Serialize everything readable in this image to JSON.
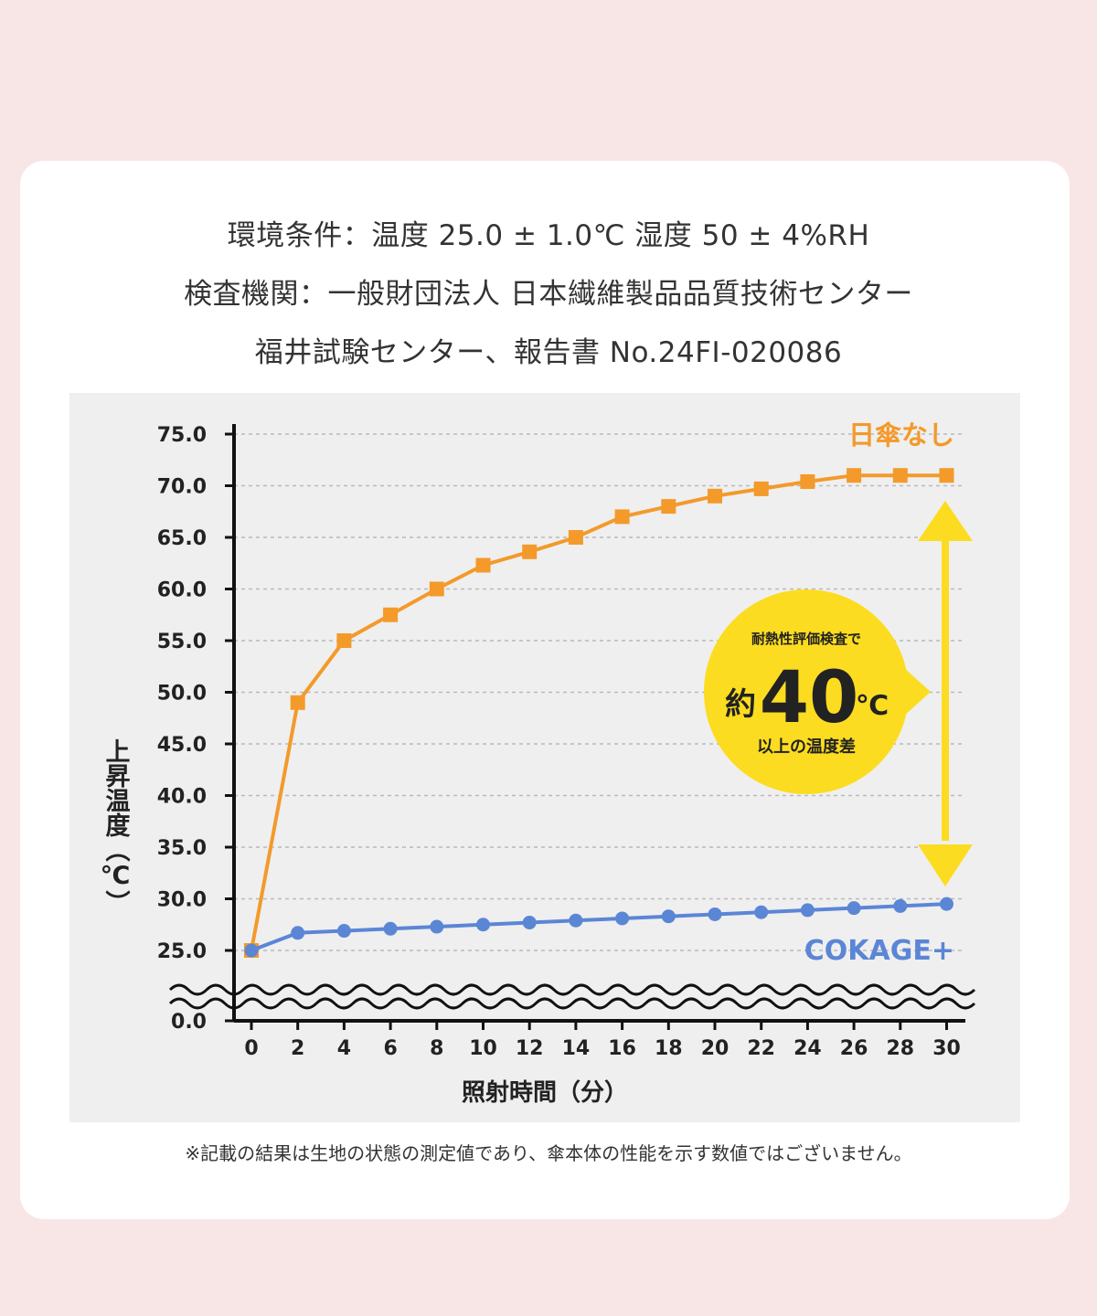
{
  "header": {
    "line1": "環境条件：温度 25.0 ± 1.0℃ 湿度 50 ± 4%RH",
    "line2": "検査機関：一般財団法人 日本繊維製品品質技術センター",
    "line3": "福井試験センター、報告書 No.24FI-020086"
  },
  "footnote": "※記載の結果は生地の状態の測定値であり、傘本体の性能を示す数値ではございません。",
  "colors": {
    "page_bg": "#f8e6e6",
    "panel_bg": "#efefef",
    "orange": "#f39a2b",
    "blue": "#5b86d6",
    "yellow": "#fcdc20",
    "axis": "#111111"
  },
  "badge": {
    "top": "耐熱性評価検査で",
    "prefix": "約",
    "number": "40",
    "unit": "℃",
    "bottom": "以上の温度差"
  },
  "chart_data": {
    "type": "line",
    "xlabel": "照射時間（分）",
    "ylabel": "上昇温度（℃）",
    "x": [
      0,
      2,
      4,
      6,
      8,
      10,
      12,
      14,
      16,
      18,
      20,
      22,
      24,
      26,
      28,
      30
    ],
    "y_ticks": [
      "0.0",
      "25.0",
      "30.0",
      "35.0",
      "40.0",
      "45.0",
      "50.0",
      "55.0",
      "60.0",
      "65.0",
      "70.0",
      "75.0"
    ],
    "ylim": [
      25,
      75
    ],
    "y_axis_break": true,
    "grid": "horizontal dashed",
    "series": [
      {
        "name": "日傘なし",
        "marker": "square",
        "values": [
          25.0,
          49.0,
          55.0,
          57.5,
          60.0,
          62.3,
          63.6,
          65.0,
          67.0,
          68.0,
          69.0,
          69.7,
          70.4,
          71.0,
          71.0,
          71.0
        ]
      },
      {
        "name": "COKAGE+",
        "marker": "circle",
        "values": [
          25.0,
          26.7,
          26.9,
          27.1,
          27.3,
          27.5,
          27.7,
          27.9,
          28.1,
          28.3,
          28.5,
          28.7,
          28.9,
          29.1,
          29.3,
          29.5
        ]
      }
    ]
  }
}
